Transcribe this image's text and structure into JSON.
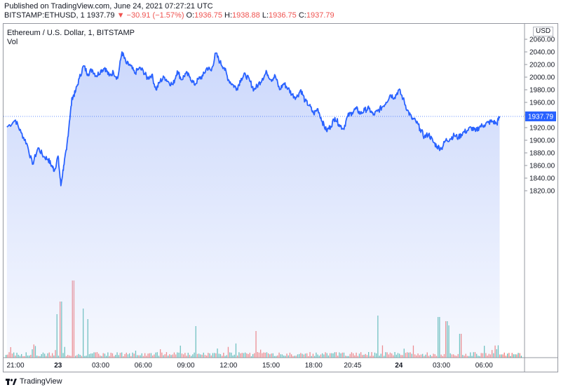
{
  "header": {
    "published": "Published on TradingView.com, June 24, 2021 07:27:21 UTC",
    "symbol": "BITSTAMP:ETHUSD, 1",
    "last": "1937.79",
    "change": "▼ −30.91 (−1.57%)",
    "open_label": "O:",
    "open": "1936.75",
    "high_label": "H:",
    "high": "1938.88",
    "low_label": "L:",
    "low": "1936.75",
    "close_label": "C:",
    "close": "1937.79"
  },
  "legend": {
    "title": "Ethereum / U.S. Dollar, 1, BITSTAMP",
    "volume": "Vol"
  },
  "axis": {
    "currency": "USD",
    "price_badge": "1937.79"
  },
  "footer": {
    "brand": "TradingView"
  },
  "colors": {
    "line": "#2962ff",
    "fill": "#c9d6fb",
    "vol_up": "#26a69a",
    "vol_down": "#ef5350",
    "badge": "#2962ff"
  },
  "chart_data": {
    "type": "area",
    "title": "Ethereum / U.S. Dollar, 1, BITSTAMP",
    "xlabel": "",
    "ylabel": "",
    "ylim": [
      1808,
      2058
    ],
    "yticks": [
      1820,
      1840,
      1860,
      1880,
      1900,
      1920,
      1940,
      1960,
      1980,
      2000,
      2020,
      2040,
      2060
    ],
    "xticks": [
      {
        "label": "21:00",
        "hours": 0,
        "bold": false
      },
      {
        "label": "23",
        "hours": 3,
        "bold": true
      },
      {
        "label": "03:00",
        "hours": 6,
        "bold": false
      },
      {
        "label": "06:00",
        "hours": 9,
        "bold": false
      },
      {
        "label": "09:00",
        "hours": 12,
        "bold": false
      },
      {
        "label": "12:00",
        "hours": 15,
        "bold": false
      },
      {
        "label": "15:00",
        "hours": 18,
        "bold": false
      },
      {
        "label": "18:00",
        "hours": 21,
        "bold": false
      },
      {
        "label": "20:45",
        "hours": 23.75,
        "bold": false
      },
      {
        "label": "24",
        "hours": 27,
        "bold": true
      },
      {
        "label": "03:00",
        "hours": 30,
        "bold": false
      },
      {
        "label": "06:00",
        "hours": 33,
        "bold": false
      }
    ],
    "series": [
      {
        "x": [
          -0.6,
          0.0,
          0.4,
          0.8,
          1.2,
          1.6,
          2.0,
          2.3,
          2.55,
          2.75,
          3.0,
          3.2,
          3.4,
          3.6,
          3.8,
          4.0,
          4.2,
          4.5,
          4.8,
          5.1,
          5.4,
          5.7,
          6.0,
          6.3,
          6.6,
          6.9,
          7.2,
          7.5,
          7.8,
          8.1,
          8.4,
          8.7,
          9.0,
          9.3,
          9.6,
          9.9,
          10.2,
          10.5,
          10.8,
          11.1,
          11.4,
          11.7,
          12.0,
          12.3,
          12.6,
          12.9,
          13.2,
          13.5,
          13.8,
          14.1,
          14.4,
          14.7,
          15.0,
          15.3,
          15.6,
          15.9,
          16.2,
          16.5,
          16.8,
          17.1,
          17.4,
          17.7,
          18.0,
          18.3,
          18.6,
          18.9,
          19.2,
          19.5,
          19.8,
          20.1,
          20.4,
          20.7,
          21.0,
          21.3,
          21.6,
          21.9,
          22.2,
          22.5,
          22.8,
          23.1,
          23.4,
          23.7,
          24.0,
          24.3,
          24.6,
          24.9,
          25.2,
          25.5,
          25.8,
          26.1,
          26.4,
          26.7,
          27.0,
          27.3,
          27.6,
          27.9,
          28.2,
          28.5,
          28.8,
          29.1,
          29.4,
          29.7,
          30.0,
          30.3,
          30.6,
          30.9,
          31.2,
          31.5,
          31.8,
          32.1,
          32.4,
          32.7,
          33.0,
          33.3,
          33.6,
          33.9,
          34.1
        ],
        "values": [
          1921,
          1932,
          1912,
          1895,
          1862,
          1888,
          1874,
          1870,
          1860,
          1852,
          1875,
          1828,
          1860,
          1885,
          1930,
          1968,
          1975,
          1998,
          2018,
          2005,
          2012,
          2002,
          2010,
          2015,
          2002,
          2008,
          1998,
          2040,
          2022,
          2018,
          2006,
          2014,
          2010,
          1998,
          2004,
          1980,
          1994,
          2000,
          1992,
          1988,
          2010,
          1996,
          2006,
          2000,
          1988,
          1997,
          2002,
          2015,
          2010,
          2038,
          2024,
          2015,
          1996,
          1988,
          1982,
          1998,
          2004,
          1994,
          1980,
          1988,
          1998,
          2008,
          1996,
          2002,
          1980,
          1990,
          1982,
          1972,
          1968,
          1980,
          1962,
          1955,
          1942,
          1950,
          1930,
          1915,
          1922,
          1936,
          1925,
          1918,
          1938,
          1944,
          1950,
          1942,
          1948,
          1950,
          1940,
          1946,
          1952,
          1960,
          1972,
          1968,
          1980,
          1966,
          1948,
          1935,
          1930,
          1918,
          1905,
          1910,
          1898,
          1890,
          1887,
          1900,
          1902,
          1908,
          1904,
          1912,
          1915,
          1920,
          1914,
          1922,
          1924,
          1928,
          1930,
          1926,
          1937.79
        ]
      }
    ],
    "current_price": 1937.79
  }
}
